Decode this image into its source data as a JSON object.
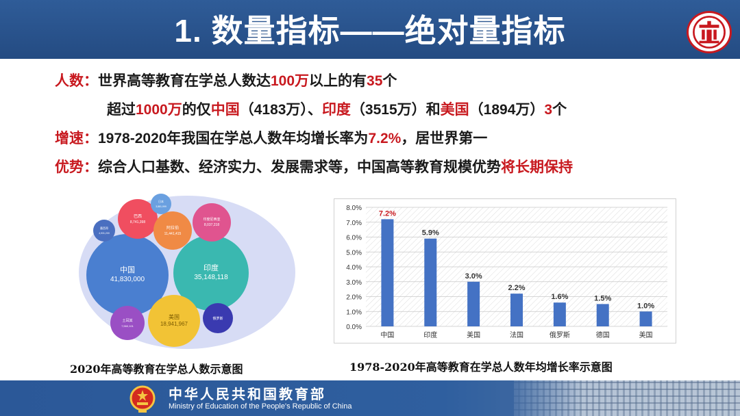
{
  "header": {
    "title": "1. 数量指标——绝对量指标",
    "logo_icon": "university-logo-icon",
    "accent": "#c8191f",
    "bar_color": "#2b5592"
  },
  "bullets": {
    "line1": {
      "label": "人数：",
      "parts": [
        "世界高等教育在学总人数达",
        "100万",
        "以上的有",
        "35",
        "个"
      ]
    },
    "line2": {
      "parts": [
        "超过",
        "1000万",
        "的仅",
        "中国",
        "（4183万）、",
        "印度",
        "（3515万）和",
        "美国",
        "（1894万）",
        "3",
        "个"
      ]
    },
    "line3": {
      "label": "增速：",
      "parts": [
        "1978-2020年我国在学总人数年均增长率为",
        "7.2%",
        "，居世界第一"
      ]
    },
    "line4": {
      "label": "优势：",
      "parts": [
        "综合人口基数、经济实力、发展需求等，中国高等教育规模优势",
        "将长期保持"
      ]
    }
  },
  "bubble_chart": {
    "caption": "2020年高等教育在学总人数示意图",
    "bubbles": [
      {
        "name": "中国",
        "value": "41,830,000",
        "color": "#4a7fd0"
      },
      {
        "name": "印度",
        "value": "35,148,118",
        "color": "#3ab8b0"
      },
      {
        "name": "美国",
        "value": "18,941,967",
        "color": "#f2c335"
      },
      {
        "name": "巴西",
        "value": "8,741,398",
        "color": "#f04e60"
      },
      {
        "name": "阿拉伯",
        "value": "11,441,415",
        "color": "#f08a45"
      },
      {
        "name": "印度尼西亚",
        "value": "8,037,218",
        "color": "#e0548f"
      },
      {
        "name": "土耳其",
        "value": "7,560,101",
        "color": "#9a4fc4"
      },
      {
        "name": "俄罗斯",
        "value": "",
        "color": "#3a3ab0"
      },
      {
        "name": "墨西哥",
        "value": "4,931,200",
        "color": "#4a6fc0"
      },
      {
        "name": "日本",
        "value": "3,881,999",
        "color": "#6aa0e0"
      }
    ]
  },
  "chart_data": {
    "type": "bar",
    "title": "",
    "caption": "1978-2020年高等教育在学总人数年均增长率示意图",
    "categories": [
      "中国",
      "印度",
      "美国",
      "法国",
      "俄罗斯",
      "德国",
      "美国"
    ],
    "values": [
      7.2,
      5.9,
      3.0,
      2.2,
      1.6,
      1.5,
      1.0
    ],
    "value_labels": [
      "7.2%",
      "5.9%",
      "3.0%",
      "2.2%",
      "1.6%",
      "1.5%",
      "1.0%"
    ],
    "yticks": [
      "0.0%",
      "1.0%",
      "2.0%",
      "3.0%",
      "4.0%",
      "5.0%",
      "6.0%",
      "7.0%",
      "8.0%"
    ],
    "ylim": [
      0,
      8
    ],
    "grid": true,
    "bar_color": "#4472c4",
    "highlight_label_color": "#c8191f"
  },
  "footer": {
    "title_cn": "中华人民共和国教育部",
    "title_en": "Ministry of Education of the People's Republic of China",
    "emblem_icon": "national-emblem-icon"
  }
}
